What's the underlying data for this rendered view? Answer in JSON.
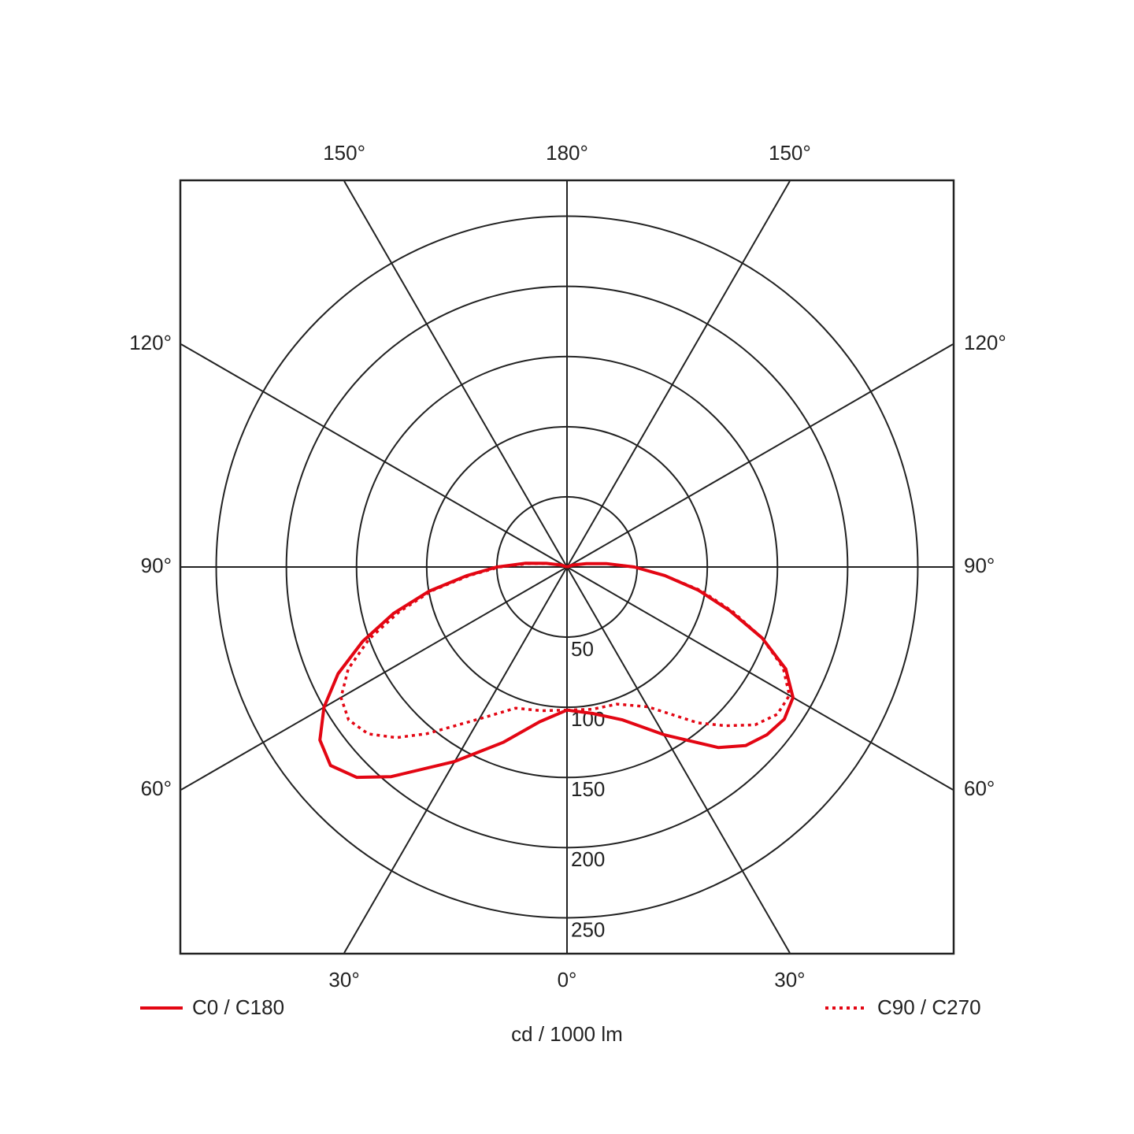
{
  "chart_data": {
    "type": "polar",
    "axis_label": "cd / 1000 lm",
    "rlim": [
      0,
      275
    ],
    "rticks": [
      50,
      100,
      150,
      200,
      250
    ],
    "angle_ticks": [
      {
        "value": 0,
        "label": "0°"
      },
      {
        "value": 30,
        "label": "30°"
      },
      {
        "value": 60,
        "label": "60°"
      },
      {
        "value": 90,
        "label": "90°"
      },
      {
        "value": 120,
        "label": "120°"
      },
      {
        "value": 150,
        "label": "150°"
      },
      {
        "value": 180,
        "label": "180°"
      }
    ],
    "theta": [
      0,
      10,
      20,
      30,
      40,
      45,
      50,
      55,
      60,
      65,
      70,
      75,
      80,
      85,
      90,
      95,
      100,
      110,
      120
    ],
    "series": [
      {
        "name": "C0 / C180",
        "color": "#e30613",
        "style": "solid",
        "values": [
          102,
          106,
          116,
          138,
          168,
          180,
          186,
          189,
          186,
          172,
          148,
          120,
          95,
          70,
          48,
          28,
          14,
          4,
          0
        ],
        "values_opposite": [
          102,
          112,
          133,
          160,
          195,
          212,
          220,
          215,
          200,
          180,
          155,
          128,
          100,
          72,
          50,
          30,
          15,
          4,
          0
        ]
      },
      {
        "name": "C90 / C270",
        "color": "#e30613",
        "style": "dotted",
        "values": [
          102,
          103,
          104,
          115,
          145,
          160,
          175,
          183,
          183,
          170,
          148,
          122,
          97,
          70,
          48,
          28,
          14,
          4,
          0
        ],
        "values_opposite": [
          102,
          104,
          107,
          125,
          155,
          172,
          185,
          190,
          186,
          172,
          150,
          124,
          98,
          70,
          48,
          28,
          14,
          4,
          0
        ]
      }
    ]
  }
}
